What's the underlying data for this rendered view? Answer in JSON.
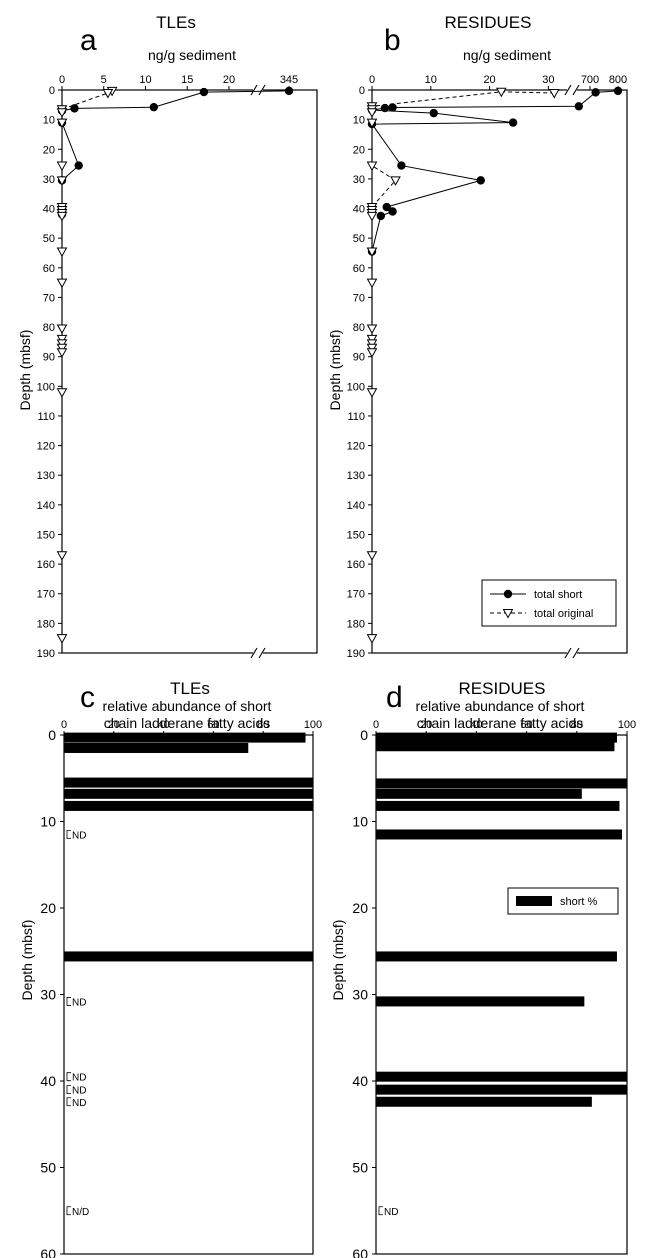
{
  "chart_data": [
    {
      "panel": "a",
      "type": "line",
      "title": "TLEs",
      "xlabel": "ng/g sediment",
      "ylabel": "Depth (mbsf)",
      "x_ticks": [
        "0",
        "5",
        "10",
        "15",
        "20",
        "345"
      ],
      "y_ticks": [
        "0",
        "10",
        "20",
        "30",
        "40",
        "50",
        "60",
        "70",
        "80",
        "90",
        "100",
        "110",
        "120",
        "130",
        "140",
        "150",
        "160",
        "170",
        "180",
        "190"
      ],
      "xlim_main": [
        0,
        23
      ],
      "x_break_value": 345,
      "ylim": [
        0,
        190
      ],
      "series": [
        {
          "name": "total short",
          "style": "solid-filled-circle",
          "points": [
            [
              345,
              0.3
            ],
            [
              17,
              0.7
            ],
            [
              11,
              5.8
            ],
            [
              1.5,
              6.2
            ],
            [
              0,
              7
            ],
            [
              0,
              11
            ],
            [
              2,
              25.5
            ],
            [
              0,
              30.5
            ],
            [
              0,
              40
            ],
            [
              0,
              41
            ],
            [
              0,
              42
            ]
          ]
        },
        {
          "name": "total original",
          "style": "dashed-open-triangle",
          "points": [
            [
              6,
              0.3
            ],
            [
              5.5,
              1.0
            ],
            [
              0,
              6.5
            ],
            [
              0,
              7.5
            ],
            [
              0,
              11
            ],
            [
              0,
              25.5
            ],
            [
              0,
              30.5
            ],
            [
              0,
              39.5
            ],
            [
              0,
              40.5
            ],
            [
              0,
              41.5
            ],
            [
              0,
              42.5
            ],
            [
              0,
              54.5
            ],
            [
              0,
              65
            ],
            [
              0,
              80.5
            ],
            [
              0,
              84
            ],
            [
              0,
              85.5
            ],
            [
              0,
              87
            ],
            [
              0,
              88.5
            ],
            [
              0,
              102
            ],
            [
              0,
              157
            ],
            [
              0,
              185
            ]
          ]
        }
      ]
    },
    {
      "panel": "b",
      "type": "line",
      "title": "RESIDUES",
      "xlabel": "ng/g sediment",
      "ylabel": "Depth (mbsf)",
      "x_ticks": [
        "0",
        "10",
        "20",
        "30",
        "700",
        "800"
      ],
      "y_ticks": [
        "0",
        "10",
        "20",
        "30",
        "40",
        "50",
        "60",
        "70",
        "80",
        "90",
        "100",
        "110",
        "120",
        "130",
        "140",
        "150",
        "160",
        "170",
        "180",
        "190"
      ],
      "xlim_main": [
        0,
        33
      ],
      "x_break_range": [
        650,
        820
      ],
      "ylim": [
        0,
        190
      ],
      "legend": {
        "entries": [
          "total short",
          "total original"
        ],
        "placement": "bottom-right"
      },
      "series": [
        {
          "name": "total short",
          "style": "solid-filled-circle",
          "points": [
            [
              800,
              0.3
            ],
            [
              720,
              0.8
            ],
            [
              660,
              5.5
            ],
            [
              3.5,
              5.9
            ],
            [
              2.2,
              6.1
            ],
            [
              0,
              6.8
            ],
            [
              10.5,
              7.8
            ],
            [
              24,
              11
            ],
            [
              0,
              11.5
            ],
            [
              5,
              25.5
            ],
            [
              18.5,
              30.5
            ],
            [
              2.5,
              39.5
            ],
            [
              3.5,
              41
            ],
            [
              1.5,
              42.5
            ],
            [
              0,
              54.5
            ]
          ]
        },
        {
          "name": "total original",
          "style": "dashed-open-triangle",
          "points": [
            [
              31,
              1.0
            ],
            [
              22,
              0.6
            ],
            [
              0,
              5.5
            ],
            [
              0,
              6.5
            ],
            [
              0,
              7.5
            ],
            [
              0,
              11
            ],
            [
              0,
              25.5
            ],
            [
              4,
              30.5
            ],
            [
              0,
              39.5
            ],
            [
              0,
              40.5
            ],
            [
              0,
              41.5
            ],
            [
              0,
              42.5
            ],
            [
              0,
              54.5
            ],
            [
              0,
              65
            ],
            [
              0,
              80.5
            ],
            [
              0,
              84
            ],
            [
              0,
              85.5
            ],
            [
              0,
              87
            ],
            [
              0,
              88.5
            ],
            [
              0,
              102
            ],
            [
              0,
              157
            ],
            [
              0,
              185
            ]
          ]
        }
      ]
    },
    {
      "panel": "c",
      "type": "bar",
      "orientation": "horizontal",
      "title": "TLEs",
      "subtitle": [
        "relative abundance of short",
        "chain ladderane fatty acids"
      ],
      "ylabel": "Depth (mbsf)",
      "x_ticks": [
        "0",
        "20",
        "40",
        "60",
        "80",
        "100"
      ],
      "y_ticks": [
        "0",
        "10",
        "20",
        "30",
        "40",
        "50",
        "60"
      ],
      "xlim": [
        0,
        100
      ],
      "ylim": [
        0,
        60
      ],
      "bars": [
        {
          "depth": 0.3,
          "value": 97
        },
        {
          "depth": 1.5,
          "value": 74
        },
        {
          "depth": 5.5,
          "value": 100
        },
        {
          "depth": 6.8,
          "value": 100
        },
        {
          "depth": 8.2,
          "value": 100
        },
        {
          "depth": 25.6,
          "value": 100
        }
      ],
      "nd_labels": [
        {
          "depth": 11.5,
          "text": "ND"
        },
        {
          "depth": 30.8,
          "text": "ND"
        },
        {
          "depth": 39.5,
          "text": "ND"
        },
        {
          "depth": 41.0,
          "text": "ND"
        },
        {
          "depth": 42.4,
          "text": "ND"
        },
        {
          "depth": 55.0,
          "text": "N/D"
        }
      ]
    },
    {
      "panel": "d",
      "type": "bar",
      "orientation": "horizontal",
      "title": "RESIDUES",
      "subtitle": [
        "relative abundance of short",
        "chain ladderane fatty acids"
      ],
      "ylabel": "Depth (mbsf)",
      "x_ticks": [
        "0",
        "20",
        "40",
        "60",
        "80",
        "100"
      ],
      "y_ticks": [
        "0",
        "10",
        "20",
        "30",
        "40",
        "50",
        "60"
      ],
      "xlim": [
        0,
        100
      ],
      "ylim": [
        0,
        60
      ],
      "legend": {
        "entries": [
          "short %"
        ],
        "placement": "right"
      },
      "bars": [
        {
          "depth": 0.3,
          "value": 96
        },
        {
          "depth": 1.3,
          "value": 95
        },
        {
          "depth": 5.6,
          "value": 100
        },
        {
          "depth": 6.8,
          "value": 82
        },
        {
          "depth": 8.2,
          "value": 97
        },
        {
          "depth": 11.5,
          "value": 98
        },
        {
          "depth": 25.6,
          "value": 96
        },
        {
          "depth": 30.8,
          "value": 83
        },
        {
          "depth": 39.5,
          "value": 100
        },
        {
          "depth": 41.0,
          "value": 100
        },
        {
          "depth": 42.4,
          "value": 86
        }
      ],
      "nd_labels": [
        {
          "depth": 55.0,
          "text": "ND"
        }
      ]
    }
  ]
}
